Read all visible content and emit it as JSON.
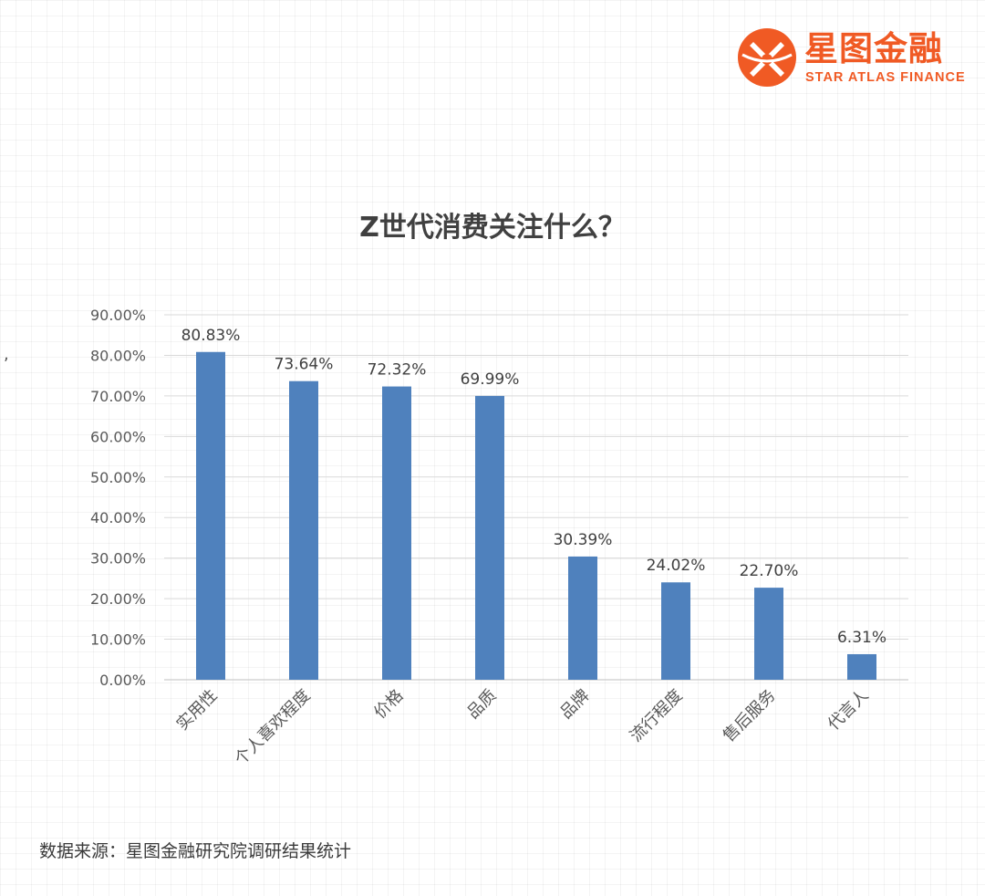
{
  "brand": {
    "name_cn": "星图金融",
    "name_en": "STAR ATLAS FINANCE",
    "color": "#f05a24"
  },
  "chart_data": {
    "type": "bar",
    "title": "Z世代消费关注什么？",
    "categories": [
      "实用性",
      "个人喜欢程度",
      "价格",
      "品质",
      "品牌",
      "流行程度",
      "售后服务",
      "代言人"
    ],
    "values": [
      80.83,
      73.64,
      72.32,
      69.99,
      30.39,
      24.02,
      22.7,
      6.31
    ],
    "data_labels": [
      "80.83%",
      "73.64%",
      "72.32%",
      "69.99%",
      "30.39%",
      "24.02%",
      "22.70%",
      "6.31%"
    ],
    "y_ticks": [
      "0.00%",
      "10.00%",
      "20.00%",
      "30.00%",
      "40.00%",
      "50.00%",
      "60.00%",
      "70.00%",
      "80.00%",
      "90.00%"
    ],
    "ylim": [
      0,
      90
    ],
    "xlabel": "",
    "ylabel": "",
    "grid": true,
    "legend": "none",
    "bar_color": "#4f81bd"
  },
  "source_note": "数据来源：星图金融研究院调研结果统计",
  "stray_mark": ","
}
